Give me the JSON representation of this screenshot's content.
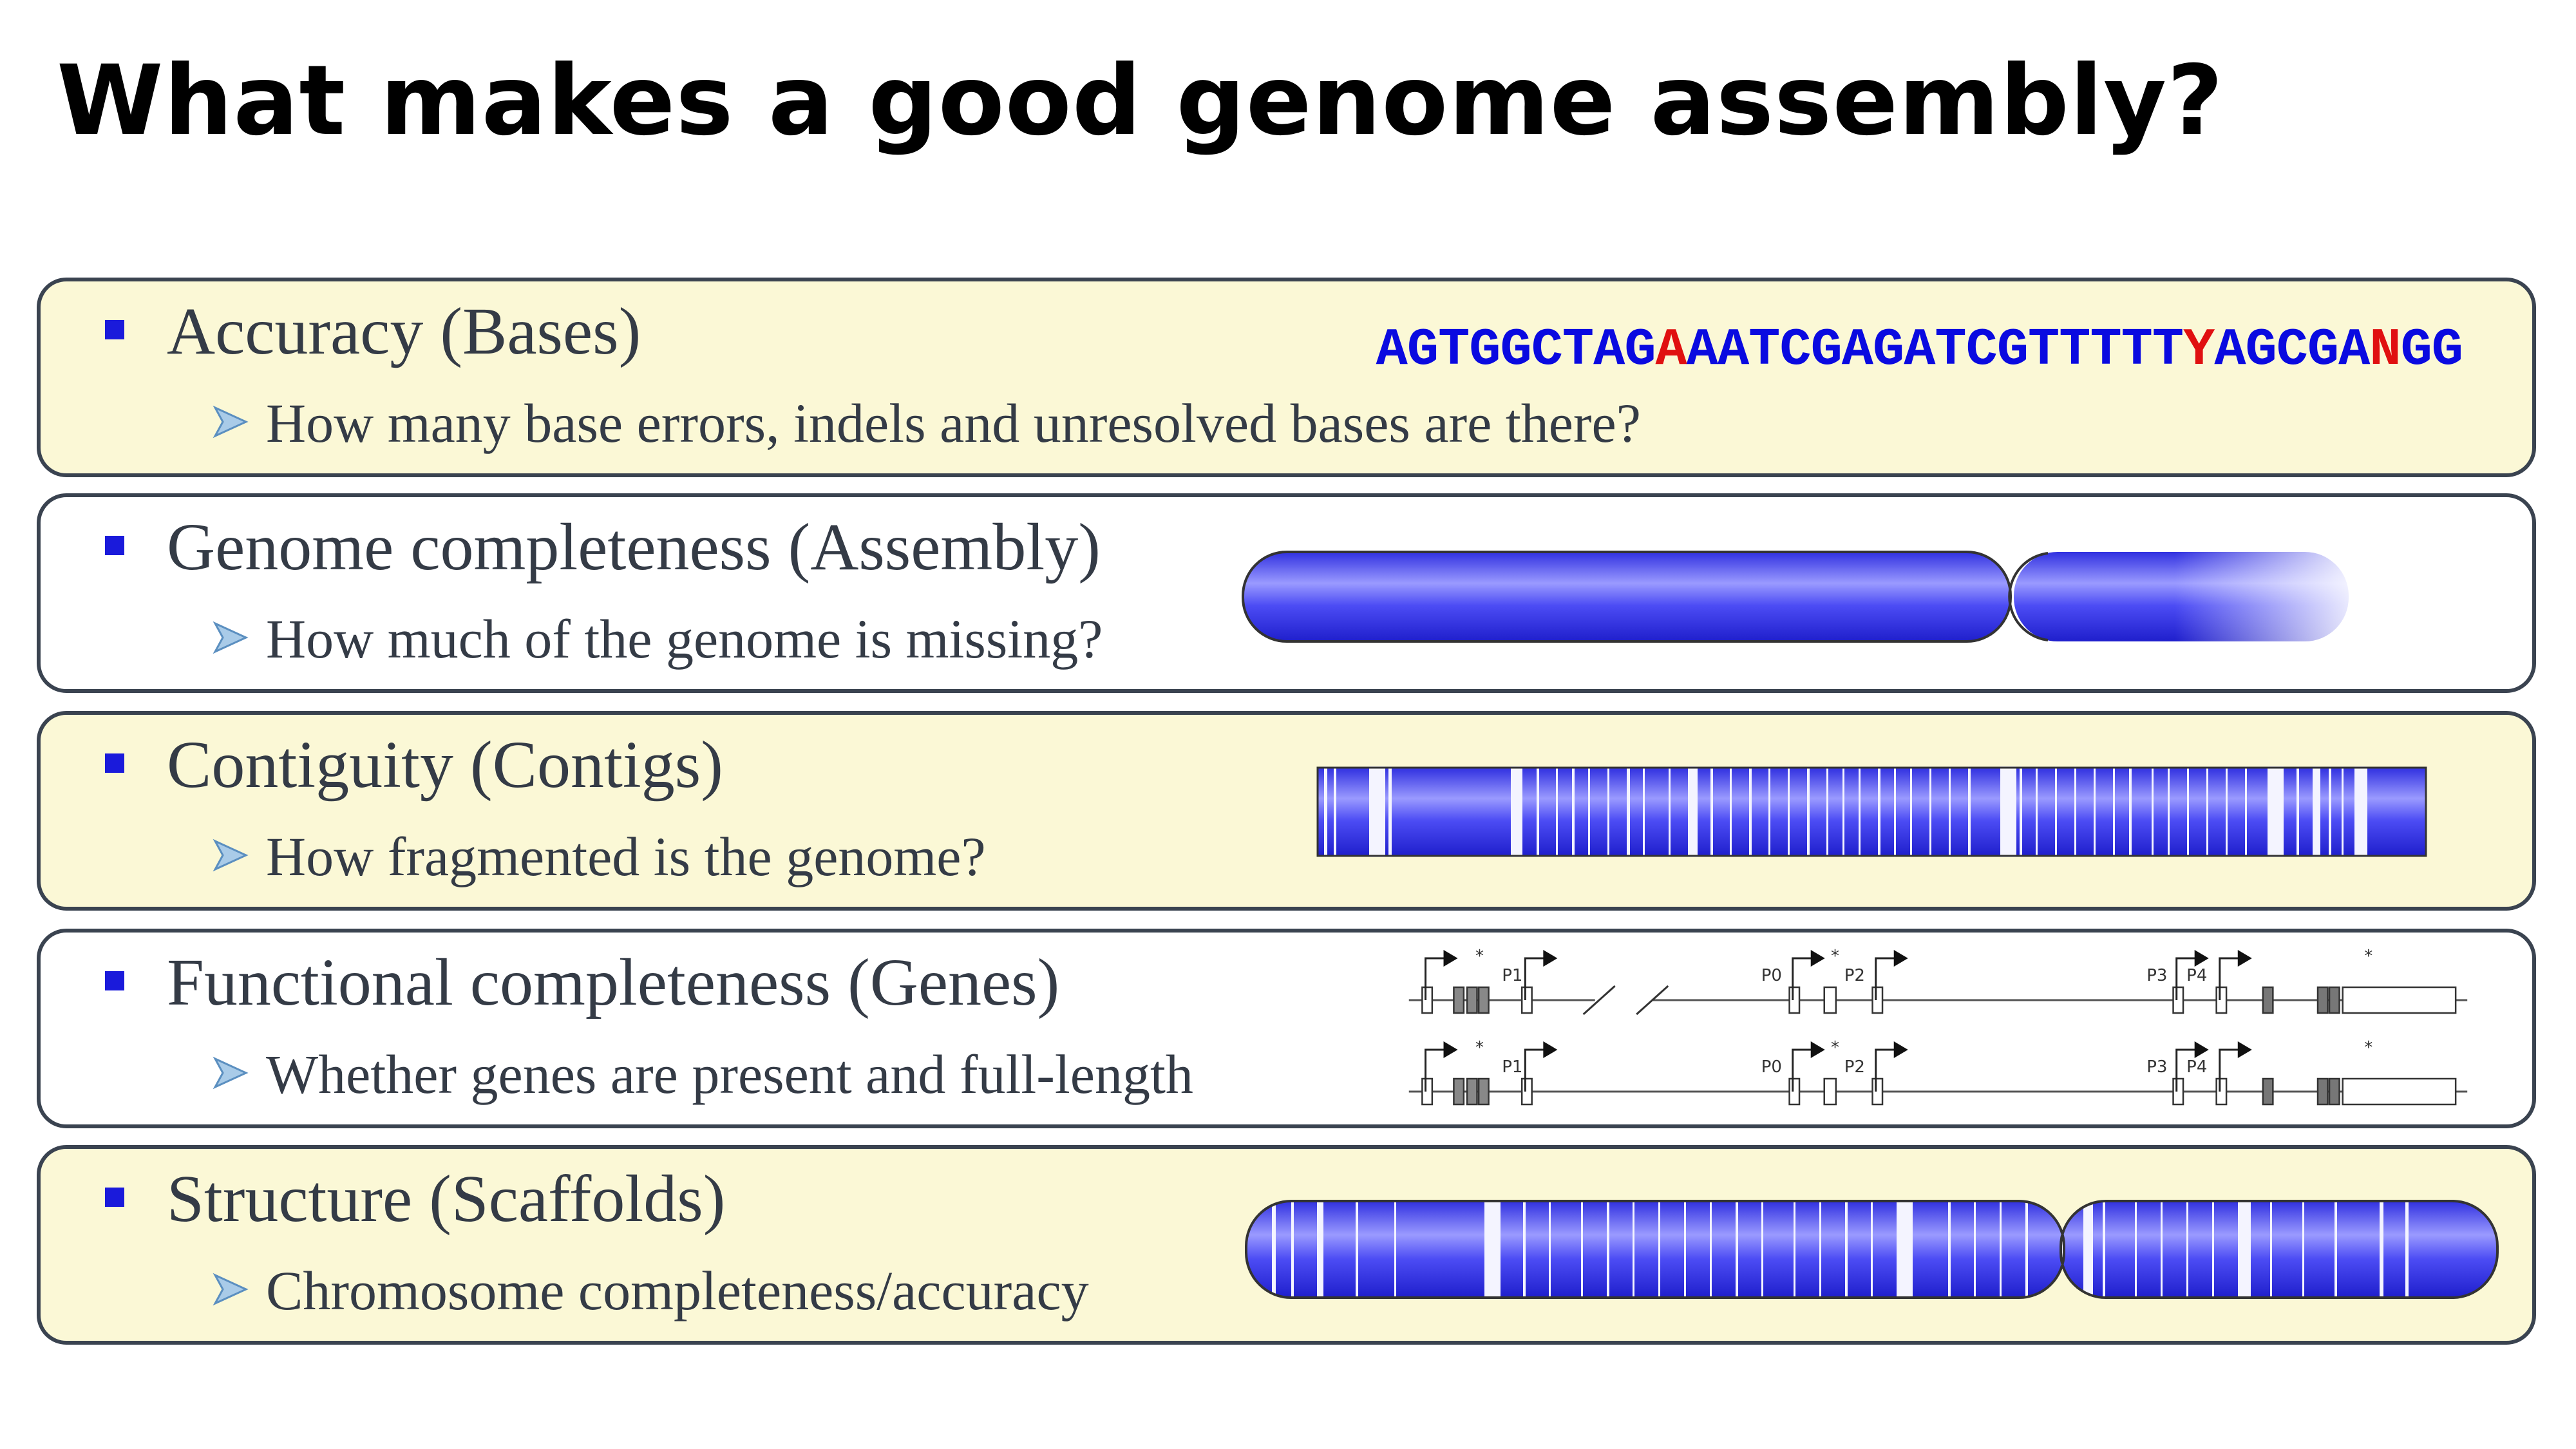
{
  "title": "What makes a good genome assembly?",
  "rows": [
    {
      "heading": "Accuracy (Bases)",
      "detail": "How many base errors, indels and unresolved bases are there?"
    },
    {
      "heading": "Genome completeness (Assembly)",
      "detail": "How much of the genome is missing?"
    },
    {
      "heading": "Contiguity (Contigs)",
      "detail": "How fragmented is the genome?"
    },
    {
      "heading": "Functional completeness (Genes)",
      "detail": "Whether genes are present and full-length"
    },
    {
      "heading": "Structure (Scaffolds)",
      "detail": "Chromosome completeness/accuracy"
    }
  ],
  "sequence": [
    {
      "text": "AGTGGCTAG",
      "color": "#0a0ae0"
    },
    {
      "text": "A",
      "color": "#e01010"
    },
    {
      "text": "AATCGAGATCGTTTTT",
      "color": "#0a0ae0"
    },
    {
      "text": "Y",
      "color": "#e01010"
    },
    {
      "text": "AGCGA",
      "color": "#0a0ae0"
    },
    {
      "text": "N",
      "color": "#e01010"
    },
    {
      "text": "GG",
      "color": "#0a0ae0"
    }
  ],
  "gene_labels": [
    "P1",
    "P0",
    "P2",
    "P3",
    "P4"
  ],
  "gene_marker": "*"
}
